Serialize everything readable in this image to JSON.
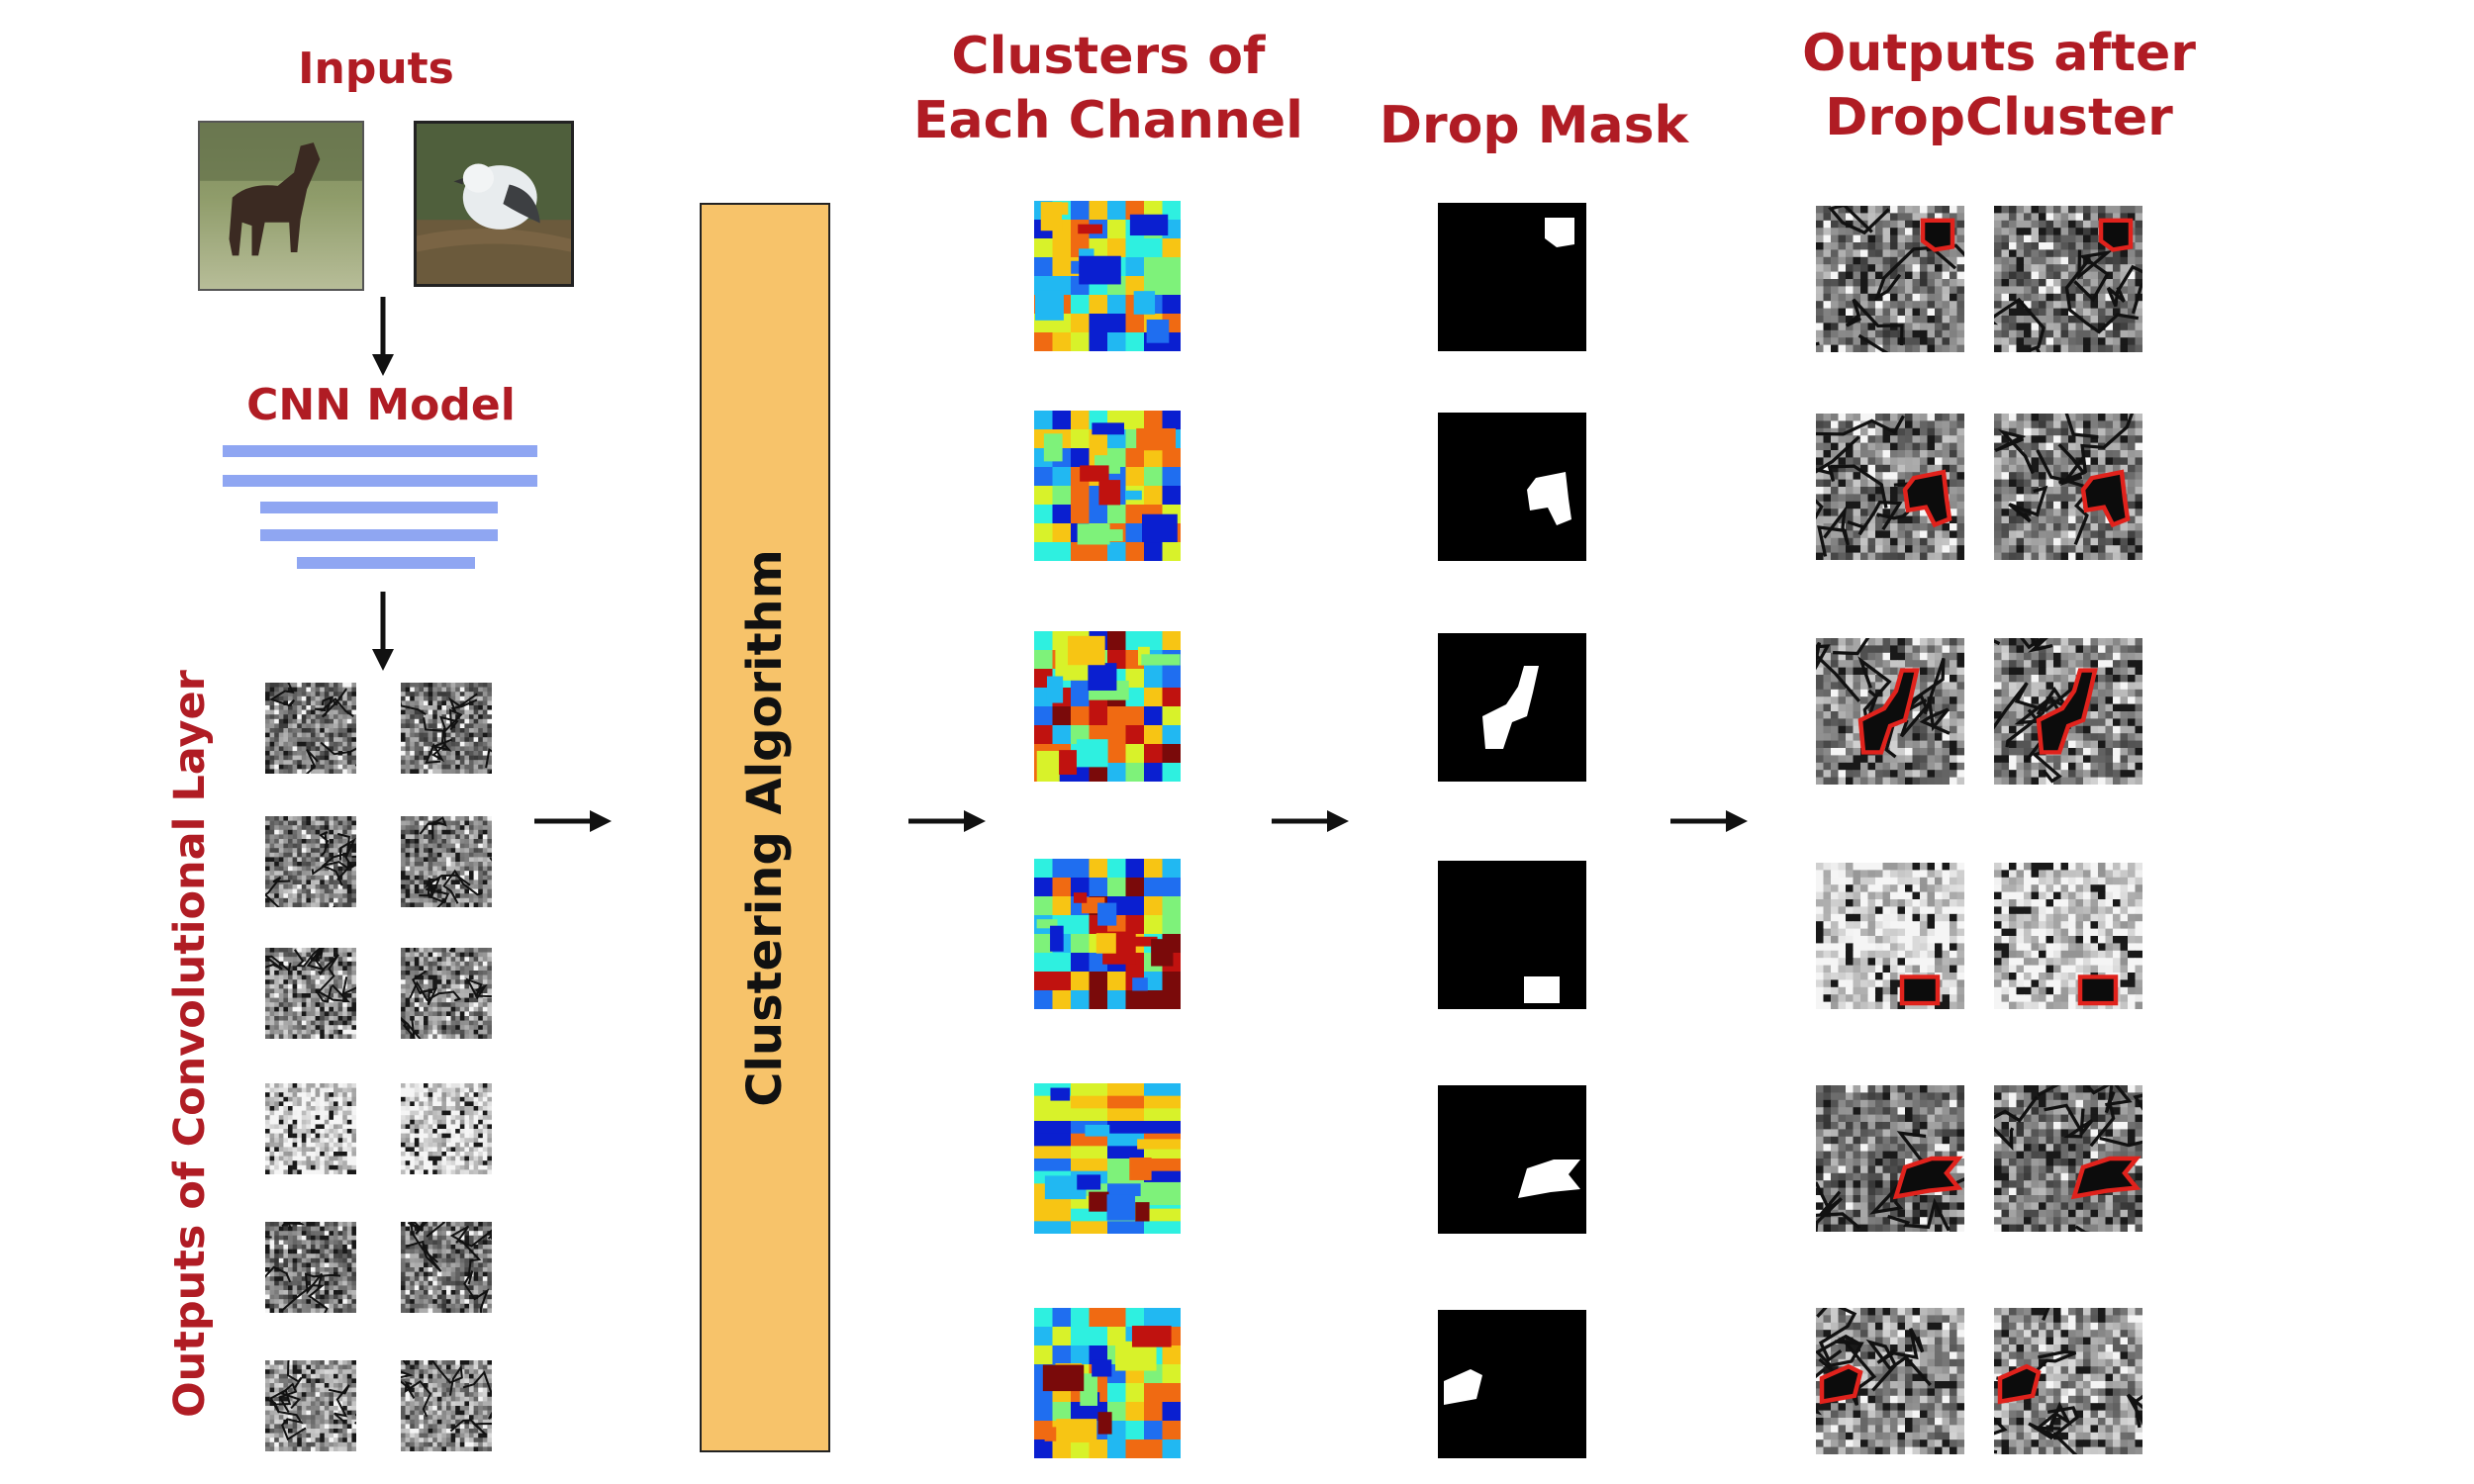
{
  "labels": {
    "inputs": "Inputs",
    "cnn_model": "CNN Model",
    "conv_outputs": "Outputs of Convolutional Layer",
    "clustering": "Clustering Algorithm",
    "clusters_line1": "Clusters of",
    "clusters_line2": "Each Channel",
    "drop_mask": "Drop Mask",
    "outputs_line1": "Outputs after",
    "outputs_line2": "DropCluster"
  },
  "colors": {
    "label": "#b01c24",
    "cnn_bar": "#8fa6f2",
    "clustering_box": "#f7c36a",
    "drop_outline": "#e0221c"
  },
  "input_images": [
    "horse-photo",
    "bird-photo"
  ],
  "feature_map_rows": 6,
  "channel_rows": 6
}
